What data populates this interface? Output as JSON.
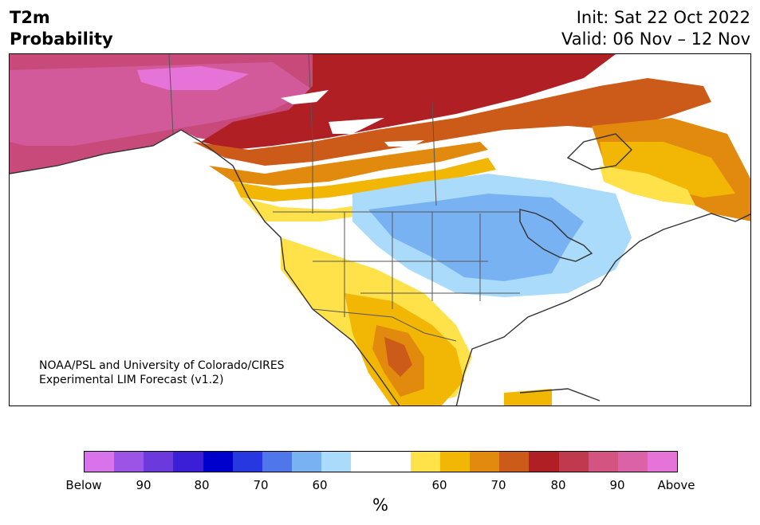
{
  "header": {
    "title_line1": "T2m",
    "title_line2": "Probability",
    "init_text": "Init: Sat 22 Oct 2022",
    "valid_text": "Valid: 06 Nov – 12 Nov"
  },
  "map": {
    "credit_line1": "NOAA/PSL and University of Colorado/CIRES",
    "credit_line2": "Experimental LIM Forecast (v1.2)"
  },
  "legend": {
    "unit": "%",
    "ticks": [
      "Below",
      "90",
      "80",
      "70",
      "60",
      "60",
      "70",
      "80",
      "90",
      "Above"
    ],
    "colors": [
      "#d873ec",
      "#9b54e6",
      "#6c39dc",
      "#3a1fd6",
      "#0000cc",
      "#2838e0",
      "#4f76ea",
      "#79b2f2",
      "#aadbfb",
      "#ffffff",
      "#ffffff",
      "#ffe14a",
      "#f2b705",
      "#e28a0d",
      "#cc5a18",
      "#b01f24",
      "#c0394d",
      "#d35480",
      "#db62a6",
      "#e673d7"
    ]
  }
}
